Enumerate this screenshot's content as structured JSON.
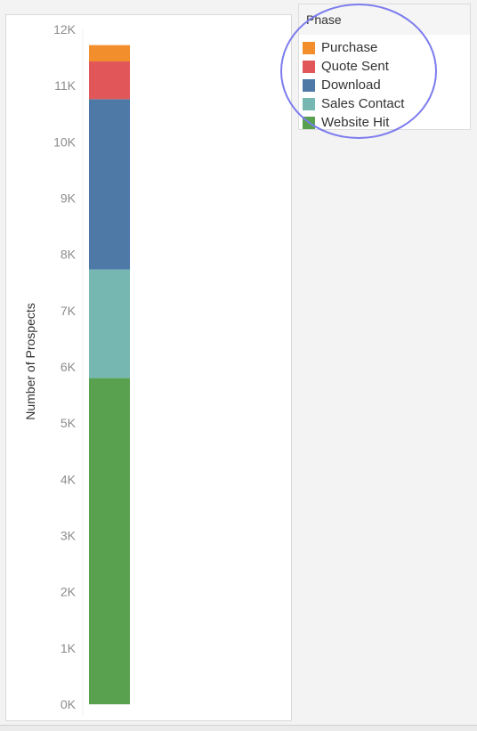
{
  "chart_data": {
    "type": "bar",
    "stacked": true,
    "ylabel": "Number of Prospects",
    "ylim": [
      0,
      12000
    ],
    "y_ticks": [
      0,
      1000,
      2000,
      3000,
      4000,
      5000,
      6000,
      7000,
      8000,
      9000,
      10000,
      11000,
      12000
    ],
    "y_tick_labels": [
      "0K",
      "1K",
      "2K",
      "3K",
      "4K",
      "5K",
      "6K",
      "7K",
      "8K",
      "9K",
      "10K",
      "11K",
      "12K"
    ],
    "categories": [
      ""
    ],
    "series": [
      {
        "name": "Website Hit",
        "values": [
          5800
        ],
        "color": "#59a14f"
      },
      {
        "name": "Sales Contact",
        "values": [
          1930
        ],
        "color": "#76b7b2"
      },
      {
        "name": "Download",
        "values": [
          3030
        ],
        "color": "#4e79a7"
      },
      {
        "name": "Quote Sent",
        "values": [
          670
        ],
        "color": "#e15759"
      },
      {
        "name": "Purchase",
        "values": [
          290
        ],
        "color": "#f28e2b"
      }
    ]
  },
  "legend": {
    "title": "Phase",
    "items": [
      {
        "label": "Purchase",
        "color": "#f28e2b"
      },
      {
        "label": "Quote Sent",
        "color": "#e15759"
      },
      {
        "label": "Download",
        "color": "#4e79a7"
      },
      {
        "label": "Sales Contact",
        "color": "#76b7b2"
      },
      {
        "label": "Website Hit",
        "color": "#59a14f"
      }
    ]
  },
  "annotation": {
    "highlight_color": "#7c7cef"
  }
}
